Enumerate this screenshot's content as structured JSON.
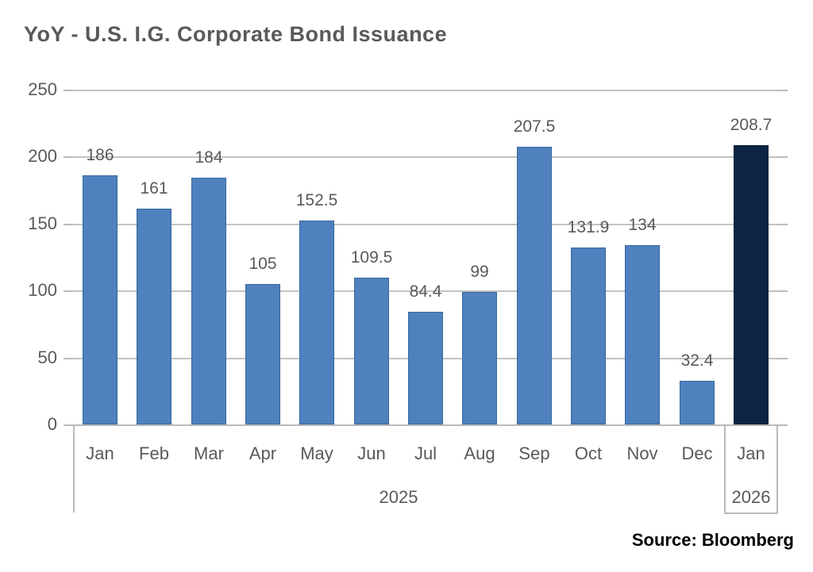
{
  "title": "YoY - U.S. I.G. Corporate Bond Issuance",
  "source_label": "Source: Bloomberg",
  "chart_data": {
    "type": "bar",
    "title": "YoY - U.S. I.G. Corporate Bond Issuance",
    "categories": [
      "Jan",
      "Feb",
      "Mar",
      "Apr",
      "May",
      "Jun",
      "Jul",
      "Aug",
      "Sep",
      "Oct",
      "Nov",
      "Dec",
      "Jan"
    ],
    "values": [
      186,
      161,
      184,
      105,
      152.5,
      109.5,
      84.4,
      99,
      207.5,
      131.9,
      134,
      32.4,
      208.7
    ],
    "value_labels": [
      "186",
      "161",
      "184",
      "105",
      "152.5",
      "109.5",
      "84.4",
      "99",
      "207.5",
      "131.9",
      "134",
      "32.4",
      "208.7"
    ],
    "highlight_index": 12,
    "group_labels": [
      {
        "label": "2025",
        "start": 0,
        "end": 11
      },
      {
        "label": "2026",
        "start": 12,
        "end": 12
      }
    ],
    "y_ticks": [
      0,
      50,
      100,
      150,
      200,
      250
    ],
    "ylim": [
      0,
      250
    ],
    "xlabel": "",
    "ylabel": "",
    "grid": true,
    "legend_position": "none",
    "colors": {
      "bar": "#4e81bd",
      "bar_border": "#36689e",
      "highlight_bar": "#0c2545",
      "grid": "#c3c3c3",
      "axis_text": "#595959",
      "title_text": "#595959",
      "source_text": "#000000"
    }
  }
}
